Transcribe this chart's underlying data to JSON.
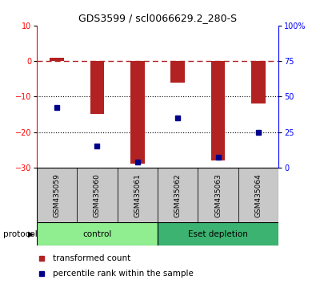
{
  "title": "GDS3599 / scl0066629.2_280-S",
  "samples": [
    "GSM435059",
    "GSM435060",
    "GSM435061",
    "GSM435062",
    "GSM435063",
    "GSM435064"
  ],
  "red_values": [
    1.0,
    -15.0,
    -29.0,
    -6.0,
    -28.0,
    -12.0
  ],
  "blue_values_left": [
    -13.0,
    -24.0,
    -28.5,
    -16.0,
    -27.0,
    -20.0
  ],
  "ylim_left": [
    -30,
    10
  ],
  "ylim_right": [
    0,
    100
  ],
  "yticks_left": [
    -30,
    -20,
    -10,
    0,
    10
  ],
  "yticks_right": [
    0,
    25,
    50,
    75,
    100
  ],
  "ytick_labels_right": [
    "0",
    "25",
    "50",
    "75",
    "100%"
  ],
  "control_label": "control",
  "eset_label": "Eset depletion",
  "protocol_label": "protocol",
  "legend_red": "transformed count",
  "legend_blue": "percentile rank within the sample",
  "bar_color": "#B22222",
  "blue_color": "#00008B",
  "control_color_light": "#90EE90",
  "eset_color_dark": "#3CB371",
  "dashed_line_color": "#B22222",
  "title_fontsize": 9,
  "tick_fontsize": 7,
  "label_fontsize": 7.5,
  "bar_width": 0.35
}
